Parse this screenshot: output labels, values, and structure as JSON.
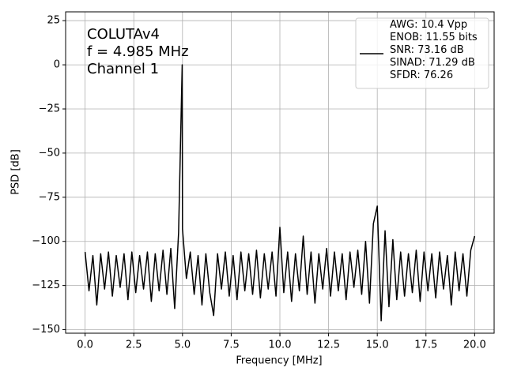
{
  "chart_data": {
    "type": "line",
    "annotations": [
      "COLUTAv4",
      "f = 4.985 MHz",
      "Channel 1"
    ],
    "xlabel": "Frequency [MHz]",
    "ylabel": "PSD [dB]",
    "x": [
      0.0,
      0.2,
      0.4,
      0.6,
      0.8,
      1.0,
      1.2,
      1.4,
      1.6,
      1.8,
      2.0,
      2.2,
      2.4,
      2.6,
      2.8,
      3.0,
      3.2,
      3.4,
      3.6,
      3.8,
      4.0,
      4.2,
      4.4,
      4.6,
      4.8,
      4.985,
      5.0,
      5.2,
      5.4,
      5.6,
      5.8,
      6.0,
      6.2,
      6.4,
      6.6,
      6.8,
      7.0,
      7.2,
      7.4,
      7.6,
      7.8,
      8.0,
      8.2,
      8.4,
      8.6,
      8.8,
      9.0,
      9.2,
      9.4,
      9.6,
      9.8,
      10.0,
      10.2,
      10.4,
      10.6,
      10.8,
      11.0,
      11.2,
      11.4,
      11.6,
      11.8,
      12.0,
      12.2,
      12.4,
      12.6,
      12.8,
      13.0,
      13.2,
      13.4,
      13.6,
      13.8,
      14.0,
      14.2,
      14.4,
      14.6,
      14.8,
      15.0,
      15.2,
      15.4,
      15.6,
      15.8,
      16.0,
      16.2,
      16.4,
      16.6,
      16.8,
      17.0,
      17.2,
      17.4,
      17.6,
      17.8,
      18.0,
      18.2,
      18.4,
      18.6,
      18.8,
      19.0,
      19.2,
      19.4,
      19.6,
      19.8,
      20.0
    ],
    "series": [
      {
        "name": "AWG: 10.4 Vpp\nENOB: 11.55 bits\nSNR: 73.16 dB\nSINAD: 71.29 dB\nSFDR: 76.26",
        "color": "#000000",
        "values": [
          -106,
          -128,
          -108,
          -136,
          -107,
          -127,
          -106,
          -131,
          -108,
          -126,
          -107,
          -133,
          -106,
          -129,
          -108,
          -127,
          -106,
          -134,
          -107,
          -128,
          -105,
          -130,
          -104,
          -138,
          -95,
          0,
          -93,
          -121,
          -106,
          -130,
          -108,
          -136,
          -107,
          -129,
          -142,
          -107,
          -127,
          -106,
          -131,
          -108,
          -133,
          -106,
          -128,
          -107,
          -130,
          -105,
          -132,
          -107,
          -127,
          -106,
          -131,
          -92,
          -129,
          -106,
          -134,
          -107,
          -128,
          -97,
          -130,
          -106,
          -135,
          -107,
          -127,
          -104,
          -131,
          -106,
          -128,
          -107,
          -133,
          -106,
          -126,
          -105,
          -130,
          -100,
          -135,
          -90,
          -80,
          -145,
          -94,
          -137,
          -99,
          -133,
          -106,
          -131,
          -107,
          -129,
          -105,
          -134,
          -106,
          -128,
          -107,
          -132,
          -106,
          -127,
          -108,
          -136,
          -106,
          -128,
          -107,
          -131,
          -105,
          -97
        ]
      }
    ],
    "xlim": [
      -1,
      21
    ],
    "xticks": [
      {
        "value": 0,
        "label": "0.0"
      },
      2.5,
      {
        "value": 5,
        "label": "5.0"
      },
      7.5,
      {
        "value": 10,
        "label": "10.0"
      },
      12.5,
      {
        "value": 15,
        "label": "15.0"
      },
      17.5,
      {
        "value": 20,
        "label": "20.0"
      }
    ],
    "ylim": [
      -152,
      30
    ],
    "yticks": [
      25,
      0,
      {
        "value": -25,
        "label": "−25"
      },
      {
        "value": -50,
        "label": "−50"
      },
      {
        "value": -75,
        "label": "−75"
      },
      {
        "value": -100,
        "label": "−100"
      },
      {
        "value": -125,
        "label": "−125"
      },
      {
        "value": -150,
        "label": "−150"
      }
    ],
    "grid": true,
    "legend": "upper right"
  }
}
